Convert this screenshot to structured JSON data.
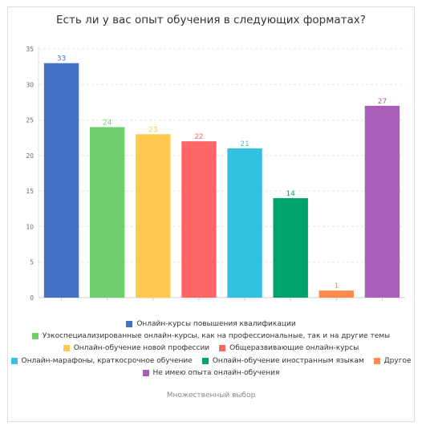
{
  "chart_data": {
    "type": "bar",
    "title": "Есть ли у вас опыт обучения в следующих форматах?",
    "ylim": [
      0,
      35
    ],
    "yticks": [
      0,
      5,
      10,
      15,
      20,
      25,
      30,
      35
    ],
    "grid": true,
    "legend_position": "bottom",
    "series": [
      {
        "name": "Онлайн-курсы повышения квалификации",
        "value": 33,
        "color": "#4472c4"
      },
      {
        "name": "Узкоспециализированные онлайн-курсы, как на профессиональные, так и на другие темы",
        "value": 24,
        "color": "#70ce6e"
      },
      {
        "name": "Онлайн-обучение новой профессии",
        "value": 23,
        "color": "#ffc94d"
      },
      {
        "name": "Общеразвивающие онлайн-курсы",
        "value": 22,
        "color": "#ff6666"
      },
      {
        "name": "Онлайн-марафоны, краткосрочное обучение",
        "value": 21,
        "color": "#33c1e3"
      },
      {
        "name": "Онлайн-обучение иностранным языкам",
        "value": 14,
        "color": "#00a36c"
      },
      {
        "name": "Другое",
        "value": 1,
        "color": "#ff8c4d"
      },
      {
        "name": "Не имею опыта онлайн-обучения",
        "value": 27,
        "color": "#a95eba"
      }
    ]
  },
  "footnote": "Множественный выбор"
}
